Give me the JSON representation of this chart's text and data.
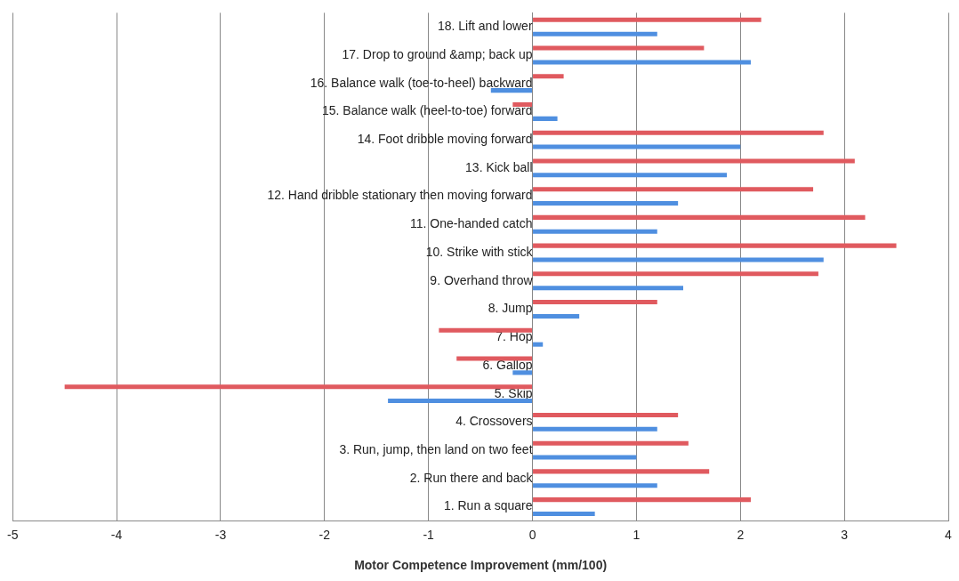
{
  "chart_data": {
    "type": "bar",
    "orientation": "horizontal",
    "xlabel": "Motor Competence Improvement (mm/100)",
    "categories": [
      "18. Lift and lower",
      "17. Drop to ground &amp; back up",
      "16. Balance walk (toe-to-heel) backward",
      "15. Balance walk (heel-to-toe) forward",
      "14. Foot dribble moving forward",
      "13. Kick ball",
      "12. Hand dribble stationary then moving forward",
      "11. One-handed catch",
      "10. Strike with stick",
      "9. Overhand throw",
      "8. Jump",
      "7. Hop",
      "6. Gallop",
      "5. Skip",
      "4. Crossovers",
      "3. Run, jump, then land on two feet",
      "2. Run there and back",
      "1. Run a square"
    ],
    "series": [
      {
        "color": "#e05a5f",
        "values": [
          2.2,
          1.65,
          0.3,
          -0.19,
          2.8,
          3.1,
          2.7,
          3.2,
          3.5,
          2.75,
          1.2,
          -0.9,
          -0.73,
          -4.5,
          1.4,
          1.5,
          1.7,
          2.1
        ]
      },
      {
        "color": "#4f8fe0",
        "values": [
          1.2,
          2.1,
          -0.4,
          0.24,
          2.0,
          1.87,
          1.4,
          1.2,
          2.8,
          1.45,
          0.45,
          0.1,
          -0.19,
          -1.39,
          1.2,
          1.0,
          1.2,
          0.6
        ]
      }
    ],
    "xlim": [
      -5,
      4
    ],
    "xticks": [
      -5,
      -4,
      -3,
      -2,
      -1,
      0,
      1,
      2,
      3,
      4
    ],
    "grid": "x",
    "legend": false
  }
}
